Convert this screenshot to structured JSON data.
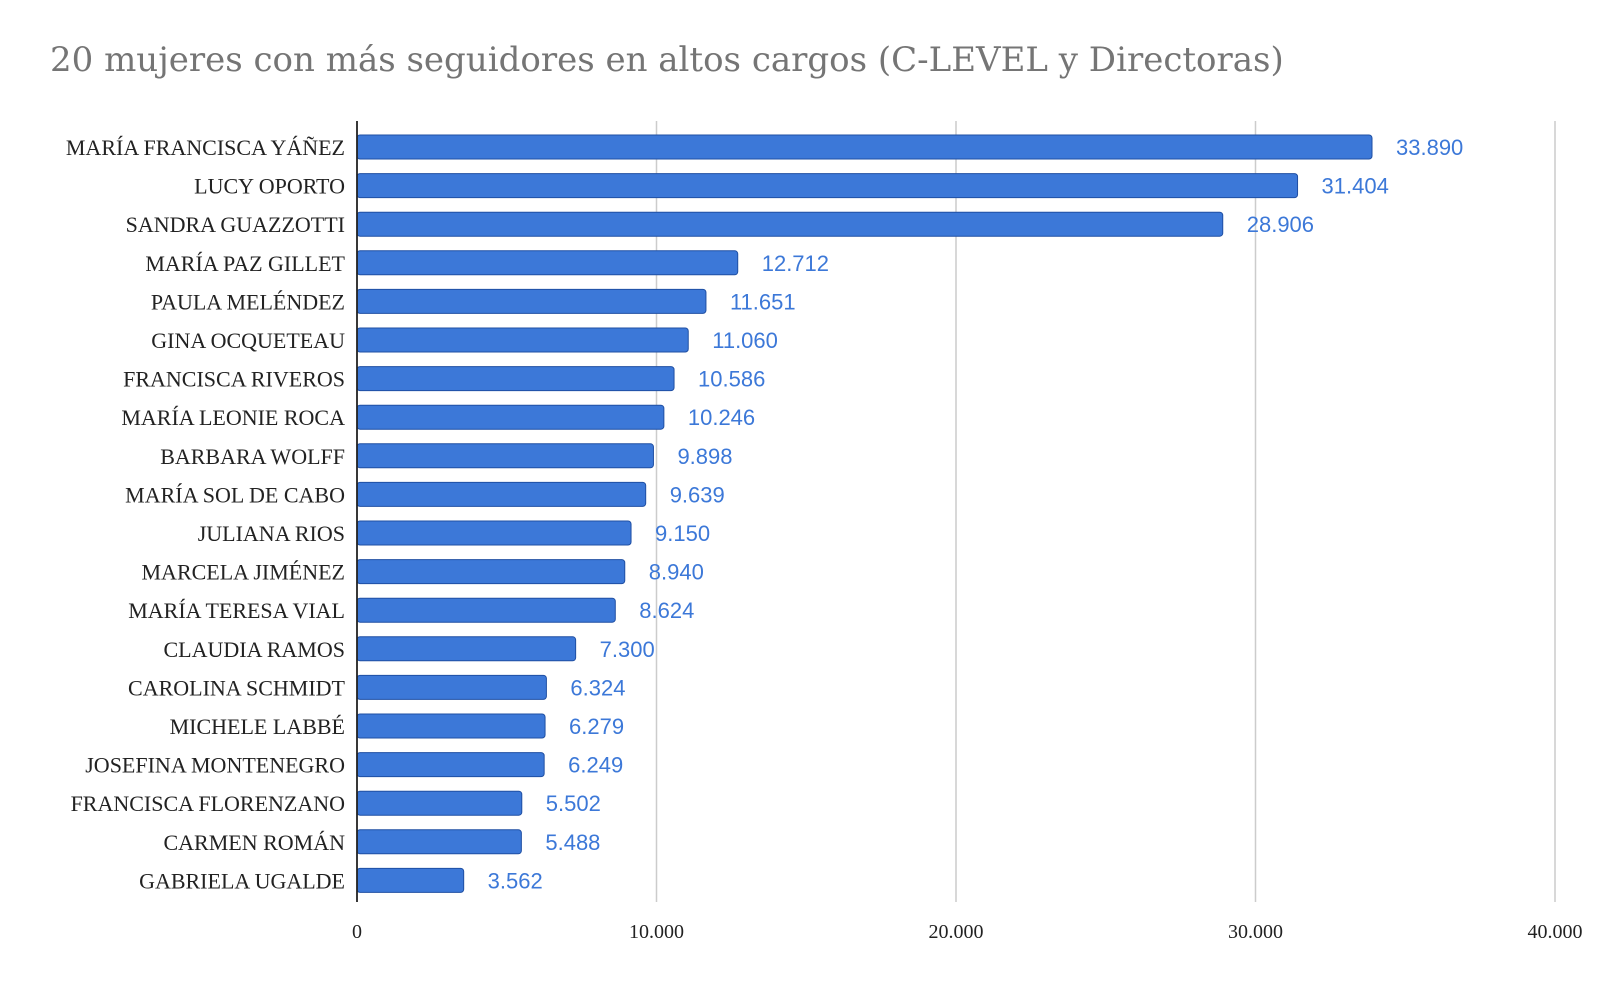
{
  "chart_data": {
    "type": "bar",
    "orientation": "horizontal",
    "title": "20 mujeres con más seguidores en altos cargos (C-LEVEL y Directoras)",
    "xlabel": "",
    "ylabel": "",
    "categories": [
      "MARÍA FRANCISCA YÁÑEZ",
      "LUCY OPORTO",
      "SANDRA GUAZZOTTI",
      "MARÍA PAZ GILLET",
      "PAULA MELÉNDEZ",
      "GINA OCQUETEAU",
      "FRANCISCA RIVEROS",
      "MARÍA LEONIE ROCA",
      "BARBARA WOLFF",
      "MARÍA SOL DE CABO",
      "JULIANA RIOS",
      "MARCELA JIMÉNEZ",
      "MARÍA TERESA VIAL",
      "CLAUDIA RAMOS",
      "CAROLINA SCHMIDT",
      "MICHELE LABBÉ",
      "JOSEFINA MONTENEGRO",
      "FRANCISCA FLORENZANO",
      "CARMEN ROMÁN",
      "GABRIELA UGALDE"
    ],
    "values": [
      33890,
      31404,
      28906,
      12712,
      11651,
      11060,
      10586,
      10246,
      9898,
      9639,
      9150,
      8940,
      8624,
      7300,
      6324,
      6279,
      6249,
      5502,
      5488,
      3562
    ],
    "value_labels": [
      "33.890",
      "31.404",
      "28.906",
      "12.712",
      "11.651",
      "11.060",
      "10.586",
      "10.246",
      "9.898",
      "9.639",
      "9.150",
      "8.940",
      "8.624",
      "7.300",
      "6.324",
      "6.279",
      "6.249",
      "5.502",
      "5.488",
      "3.562"
    ],
    "xlim": [
      0,
      40000
    ],
    "x_ticks": [
      0,
      10000,
      20000,
      30000,
      40000
    ],
    "x_tick_labels": [
      "0",
      "10.000",
      "20.000",
      "30.000",
      "40.000"
    ],
    "grid": true,
    "legend": "none",
    "colors": {
      "bar": "#3c78d8",
      "bar_border": "#1f4fa3",
      "value_label": "#3c78d8",
      "grid": "#cccccc",
      "axis": "#222222",
      "title": "#757575"
    }
  }
}
